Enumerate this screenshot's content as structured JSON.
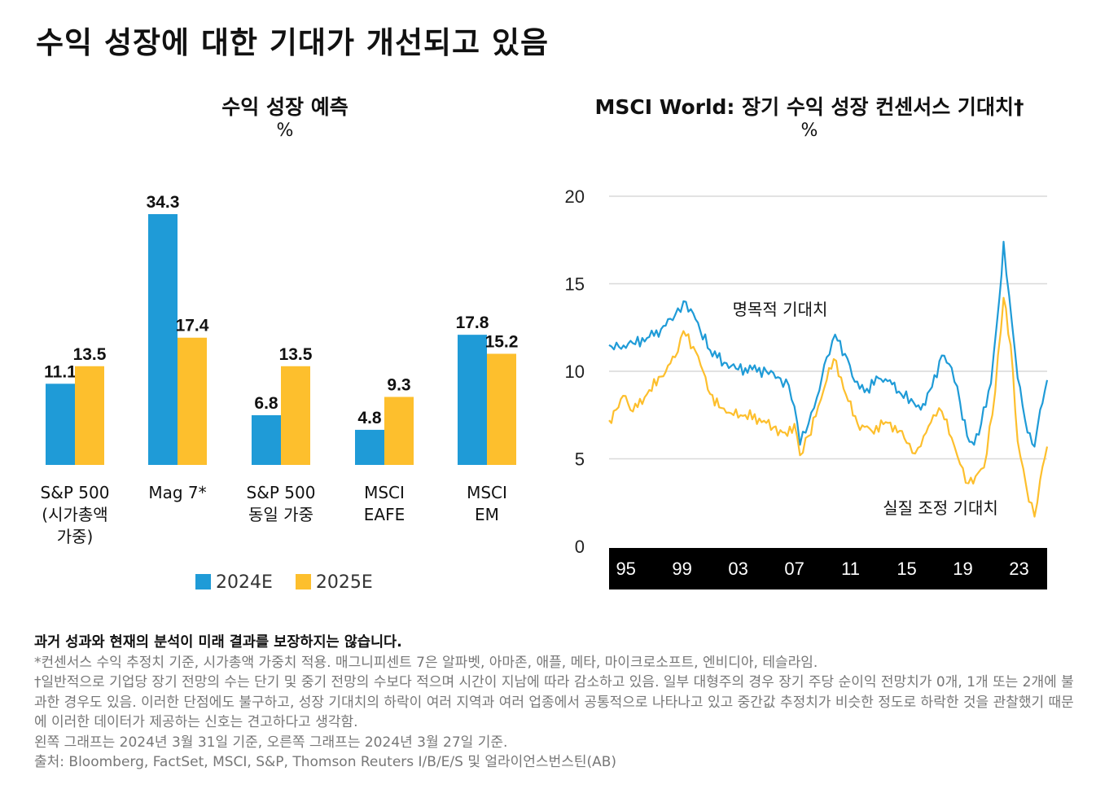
{
  "title": "수익 성장에 대한 기대가 개선되고 있음",
  "colors": {
    "blue": "#1f9bd7",
    "yellow": "#fdbf2d",
    "axis_band": "#000000",
    "grid": "#d9d9d9"
  },
  "left_chart": {
    "title": "수익 성장 예측",
    "unit": "%"
  },
  "right_chart": {
    "title": "MSCI World: 장기 수익 성장 컨센서스 기대치†",
    "unit": "%"
  },
  "chart_data": [
    {
      "type": "bar",
      "title": "수익 성장 예측",
      "ylabel": "%",
      "categories": [
        [
          "S&P 500",
          "(시가총액",
          "가중)"
        ],
        [
          "Mag 7*"
        ],
        [
          "S&P 500",
          "동일 가중"
        ],
        [
          "MSCI",
          "EAFE"
        ],
        [
          "MSCI",
          "EM"
        ]
      ],
      "series": [
        {
          "name": "2024E",
          "values": [
            11.1,
            34.3,
            6.8,
            4.8,
            17.8
          ],
          "labels": [
            "11.1",
            "34.3",
            "6.8",
            "4.8",
            "17.8"
          ]
        },
        {
          "name": "2025E",
          "values": [
            13.5,
            17.4,
            13.5,
            9.3,
            15.2
          ],
          "labels": [
            "13.5",
            "17.4",
            "13.5",
            "9.3",
            "15.2"
          ]
        }
      ],
      "legend": "bottom",
      "ylim": [
        0,
        35
      ]
    },
    {
      "type": "line",
      "title": "MSCI World: 장기 수익 성장 컨센서스 기대치†",
      "ylabel": "%",
      "ylim": [
        0,
        20
      ],
      "yticks": [
        "0",
        "5",
        "10",
        "15",
        "20"
      ],
      "xlim": [
        1993.8,
        2025.0
      ],
      "xticks": [
        {
          "value": 1995,
          "label": "95"
        },
        {
          "value": 1999,
          "label": "99"
        },
        {
          "value": 2003,
          "label": "03"
        },
        {
          "value": 2007,
          "label": "07"
        },
        {
          "value": 2011,
          "label": "11"
        },
        {
          "value": 2015,
          "label": "15"
        },
        {
          "value": 2019,
          "label": "19"
        },
        {
          "value": 2023,
          "label": "23"
        }
      ],
      "grid": true,
      "series": [
        {
          "name": "명목적 기대치",
          "points": [
            [
              1993.8,
              11.5
            ],
            [
              1994.5,
              11.4
            ],
            [
              1995.5,
              11.6
            ],
            [
              1996.5,
              11.9
            ],
            [
              1997.5,
              12.4
            ],
            [
              1998.5,
              13.2
            ],
            [
              1999.1,
              14.0
            ],
            [
              1999.8,
              13.3
            ],
            [
              2000.3,
              12.3
            ],
            [
              2001.0,
              11.2
            ],
            [
              2002.0,
              10.5
            ],
            [
              2003.0,
              10.1
            ],
            [
              2004.0,
              10.1
            ],
            [
              2005.0,
              10.0
            ],
            [
              2006.0,
              9.6
            ],
            [
              2006.6,
              9.2
            ],
            [
              2007.0,
              8.0
            ],
            [
              2007.4,
              5.8
            ],
            [
              2008.0,
              7.0
            ],
            [
              2008.6,
              8.5
            ],
            [
              2009.3,
              10.8
            ],
            [
              2009.9,
              12.1
            ],
            [
              2010.6,
              11.0
            ],
            [
              2011.3,
              9.4
            ],
            [
              2012.0,
              8.8
            ],
            [
              2013.0,
              9.6
            ],
            [
              2013.8,
              9.5
            ],
            [
              2014.6,
              8.7
            ],
            [
              2015.5,
              8.2
            ],
            [
              2016.0,
              7.8
            ],
            [
              2016.8,
              9.1
            ],
            [
              2017.5,
              10.9
            ],
            [
              2018.2,
              10.2
            ],
            [
              2018.8,
              8.2
            ],
            [
              2019.3,
              6.3
            ],
            [
              2019.8,
              5.8
            ],
            [
              2020.3,
              7.0
            ],
            [
              2021.0,
              9.3
            ],
            [
              2021.6,
              14.2
            ],
            [
              2021.9,
              17.4
            ],
            [
              2022.3,
              14.3
            ],
            [
              2022.9,
              9.6
            ],
            [
              2023.6,
              6.5
            ],
            [
              2024.1,
              5.7
            ],
            [
              2024.5,
              7.8
            ],
            [
              2025.0,
              9.5
            ]
          ]
        },
        {
          "name": "실질 조정 기대치",
          "points": [
            [
              1993.8,
              7.2
            ],
            [
              1994.3,
              7.8
            ],
            [
              1994.8,
              8.6
            ],
            [
              1995.5,
              7.7
            ],
            [
              1996.5,
              8.7
            ],
            [
              1997.5,
              9.7
            ],
            [
              1998.5,
              10.8
            ],
            [
              1999.1,
              12.3
            ],
            [
              1999.8,
              11.4
            ],
            [
              2000.5,
              10.0
            ],
            [
              2001.0,
              8.7
            ],
            [
              2001.8,
              7.9
            ],
            [
              2002.5,
              7.6
            ],
            [
              2003.5,
              7.5
            ],
            [
              2004.5,
              7.3
            ],
            [
              2005.5,
              6.8
            ],
            [
              2006.5,
              6.3
            ],
            [
              2007.0,
              7.0
            ],
            [
              2007.4,
              5.2
            ],
            [
              2008.0,
              6.3
            ],
            [
              2008.7,
              8.0
            ],
            [
              2009.3,
              9.5
            ],
            [
              2009.8,
              10.7
            ],
            [
              2010.5,
              9.0
            ],
            [
              2011.5,
              7.0
            ],
            [
              2012.5,
              6.6
            ],
            [
              2013.5,
              7.1
            ],
            [
              2014.5,
              6.6
            ],
            [
              2015.0,
              5.9
            ],
            [
              2015.6,
              5.3
            ],
            [
              2016.2,
              6.3
            ],
            [
              2016.9,
              7.5
            ],
            [
              2017.5,
              7.7
            ],
            [
              2018.2,
              6.2
            ],
            [
              2018.8,
              4.7
            ],
            [
              2019.4,
              3.6
            ],
            [
              2019.9,
              4.0
            ],
            [
              2020.5,
              4.5
            ],
            [
              2021.1,
              7.5
            ],
            [
              2021.7,
              12.3
            ],
            [
              2021.9,
              14.2
            ],
            [
              2022.4,
              11.5
            ],
            [
              2022.9,
              6.0
            ],
            [
              2023.5,
              3.5
            ],
            [
              2024.1,
              1.7
            ],
            [
              2024.5,
              3.8
            ],
            [
              2025.0,
              5.7
            ]
          ]
        }
      ]
    }
  ],
  "notes": {
    "disclaimer": "과거 성과와 현재의 분석이 미래 결과를 보장하지는 않습니다.",
    "note1": "*컨센서스 수익 추정치 기준, 시가총액 가중치 적용. 매그니피센트 7은 알파벳, 아마존, 애플, 메타, 마이크로소프트, 엔비디아, 테슬라임.",
    "note2": "†일반적으로 기업당 장기 전망의 수는 단기 및 중기 전망의 수보다 적으며 시간이 지남에 따라 감소하고 있음. 일부 대형주의 경우 장기 주당 순이익 전망치가 0개, 1개 또는 2개에 불과한 경우도 있음. 이러한 단점에도 불구하고, 성장 기대치의 하락이 여러 지역과 여러 업종에서 공통적으로 나타나고 있고 중간값 추정치가 비슷한 정도로 하락한 것을 관찰했기 때문에 이러한 데이터가 제공하는 신호는 견고하다고 생각함.",
    "note3": "왼쪽 그래프는 2024년 3월 31일 기준, 오른쪽 그래프는 2024년 3월 27일 기준.",
    "source": "출처: Bloomberg, FactSet, MSCI, S&P, Thomson Reuters I/B/E/S 및 얼라이언스번스틴(AB)"
  }
}
